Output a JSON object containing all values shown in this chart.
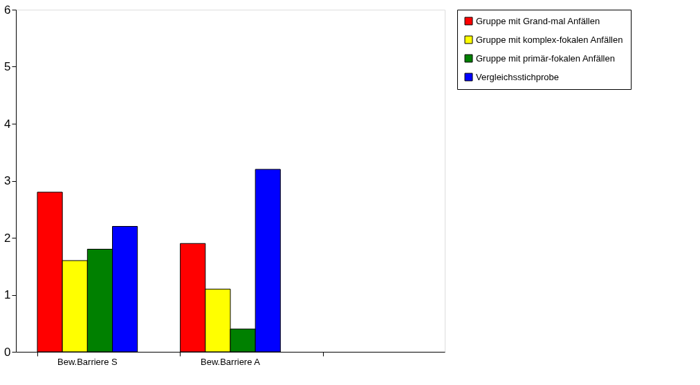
{
  "chart_data": {
    "type": "bar",
    "categories": [
      "Bew.Barriere S",
      "Bew.Barriere A",
      null
    ],
    "series": [
      {
        "name": "Gruppe mit Grand-mal Anfällen",
        "color": "#ff0000",
        "values": [
          2.8,
          1.9,
          null
        ]
      },
      {
        "name": "Gruppe mit komplex-fokalen Anfällen",
        "color": "#ffff00",
        "values": [
          1.6,
          1.1,
          null
        ]
      },
      {
        "name": "Gruppe mit primär-fokalen Anfällen",
        "color": "#008000",
        "values": [
          1.8,
          0.4,
          null
        ]
      },
      {
        "name": "Vergleichsstichprobe",
        "color": "#0000ff",
        "values": [
          2.2,
          3.2,
          null
        ]
      }
    ],
    "ylim": [
      0,
      6
    ],
    "yticks": [
      0,
      1,
      2,
      3,
      4,
      5,
      6
    ],
    "grid": false,
    "legend": "right"
  }
}
